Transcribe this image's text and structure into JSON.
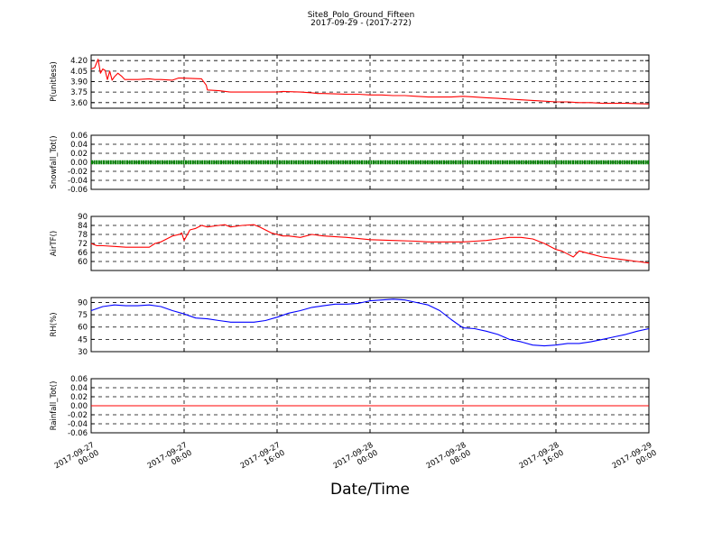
{
  "figure": {
    "title": "Site8_Polo_Ground_Fifteen",
    "subtitle": "2017-09-29 - (2017-272)",
    "xlabel": "Date/Time"
  },
  "colors": {
    "p": "#ff0000",
    "snowfall": "#008000",
    "airtf": "#ff0000",
    "rh": "#0000ff",
    "rainfall": "#ff0000"
  },
  "chart_data": [
    {
      "type": "line",
      "ylabel": "P(unitless)",
      "ylim": [
        3.52,
        4.28
      ],
      "yticks": [
        "4.20",
        "4.05",
        "3.90",
        "3.75",
        "3.60"
      ],
      "grid": true,
      "series": [
        {
          "x": [
            0,
            0.3,
            0.6,
            0.8,
            1.0,
            1.2,
            1.4,
            1.6,
            1.8,
            2.0,
            2.3,
            2.6,
            2.9,
            3.2,
            3.5,
            4.0,
            5,
            5.5,
            6,
            7,
            7.5,
            7.8,
            9.5,
            9.9,
            10,
            11,
            12,
            15,
            16,
            16.5,
            18,
            19,
            19.5,
            20,
            22,
            23,
            24,
            25,
            26,
            27,
            28,
            29,
            31,
            32,
            33,
            34,
            35,
            36,
            37,
            39,
            40,
            41,
            42,
            43,
            44,
            45,
            46,
            48
          ],
          "y": [
            4.08,
            4.1,
            4.22,
            4.02,
            4.08,
            4.06,
            3.93,
            4.05,
            3.92,
            3.97,
            4.02,
            3.98,
            3.93,
            3.93,
            3.93,
            3.93,
            3.94,
            3.93,
            3.93,
            3.92,
            3.95,
            3.95,
            3.94,
            3.85,
            3.78,
            3.77,
            3.75,
            3.75,
            3.75,
            3.76,
            3.75,
            3.74,
            3.73,
            3.73,
            3.72,
            3.72,
            3.71,
            3.71,
            3.7,
            3.7,
            3.69,
            3.68,
            3.68,
            3.69,
            3.68,
            3.67,
            3.66,
            3.65,
            3.64,
            3.62,
            3.61,
            3.61,
            3.6,
            3.6,
            3.59,
            3.59,
            3.59,
            3.58
          ]
        }
      ]
    },
    {
      "type": "line",
      "ylabel": "Snowfall_Tot()",
      "ylim": [
        -0.06,
        0.06
      ],
      "yticks": [
        "0.06",
        "0.04",
        "0.02",
        "0.00",
        "-0.02",
        "-0.04",
        "-0.06"
      ],
      "grid": true,
      "series": [
        {
          "x": [
            0,
            48
          ],
          "y": [
            0,
            0
          ]
        }
      ]
    },
    {
      "type": "line",
      "ylabel": "AirTF()",
      "ylim": [
        54,
        90
      ],
      "yticks": [
        "90",
        "84",
        "78",
        "72",
        "66",
        "60"
      ],
      "grid": true,
      "series": [
        {
          "x": [
            0,
            0.5,
            1,
            2,
            3,
            4,
            5,
            5.5,
            6,
            7,
            7.6,
            7.8,
            8,
            8.5,
            9,
            9.5,
            10,
            11,
            11.5,
            12,
            13,
            14,
            14.5,
            15,
            15.5,
            16,
            16.5,
            17,
            18,
            19,
            20,
            22,
            24,
            26,
            28,
            29,
            30,
            31,
            31.5,
            32,
            33,
            34,
            35,
            36,
            37,
            38,
            39,
            40,
            40.5,
            41,
            41.5,
            42,
            43,
            44,
            45,
            46,
            47,
            48
          ],
          "y": [
            72,
            70.5,
            70.5,
            70,
            69.5,
            69.5,
            69.5,
            72,
            73,
            77,
            78,
            79,
            74,
            81,
            82,
            84,
            83,
            84,
            84.5,
            83,
            84,
            84.5,
            83,
            81,
            79,
            78,
            77,
            77,
            76,
            78,
            77,
            76,
            74.5,
            74,
            73.5,
            73,
            73,
            73,
            73,
            73,
            73.5,
            74,
            75,
            76,
            76,
            75,
            72,
            68,
            67,
            65,
            63,
            67,
            65,
            63,
            62,
            61,
            60,
            59
          ]
        }
      ]
    },
    {
      "type": "line",
      "ylabel": "RH(%)",
      "ylim": [
        30,
        96
      ],
      "yticks": [
        "90",
        "75",
        "60",
        "45",
        "30"
      ],
      "grid": true,
      "series": [
        {
          "x": [
            0,
            1,
            2,
            3,
            4,
            5,
            6,
            7,
            8,
            9,
            10,
            11,
            12,
            13,
            14,
            15,
            16,
            17,
            18,
            19,
            20,
            21,
            22,
            23,
            24,
            25,
            26,
            27,
            28,
            29,
            30,
            31,
            32,
            33,
            34,
            35,
            36,
            37,
            38,
            39,
            40,
            41,
            42,
            43,
            44,
            45,
            46,
            47,
            48
          ],
          "y": [
            80,
            85,
            87,
            86,
            86,
            87,
            85,
            80,
            76,
            71,
            70,
            68,
            66,
            66,
            66,
            68,
            72,
            77,
            80,
            84,
            86,
            88,
            88,
            89,
            92,
            93,
            94,
            93,
            90,
            87,
            80,
            69,
            59,
            58,
            55,
            51,
            45,
            42,
            38,
            37,
            38,
            40,
            40,
            42,
            45,
            48,
            51,
            55,
            58
          ]
        }
      ]
    },
    {
      "type": "line",
      "ylabel": "Rainfall_Tot()",
      "ylim": [
        -0.06,
        0.06
      ],
      "yticks": [
        "0.06",
        "0.04",
        "0.02",
        "0.00",
        "-0.02",
        "-0.04",
        "-0.06"
      ],
      "grid": true,
      "series": [
        {
          "x": [
            0,
            48
          ],
          "y": [
            0,
            0
          ]
        }
      ]
    }
  ],
  "xaxis": {
    "range": [
      0,
      48
    ],
    "tick_positions": [
      0,
      8,
      16,
      24,
      32,
      40,
      48
    ],
    "tick_labels": [
      [
        "2017-09-27",
        "00:00"
      ],
      [
        "2017-09-27",
        "08:00"
      ],
      [
        "2017-09-27",
        "16:00"
      ],
      [
        "2017-09-28",
        "00:00"
      ],
      [
        "2017-09-28",
        "08:00"
      ],
      [
        "2017-09-28",
        "16:00"
      ],
      [
        "2017-09-29",
        "00:00"
      ]
    ]
  }
}
